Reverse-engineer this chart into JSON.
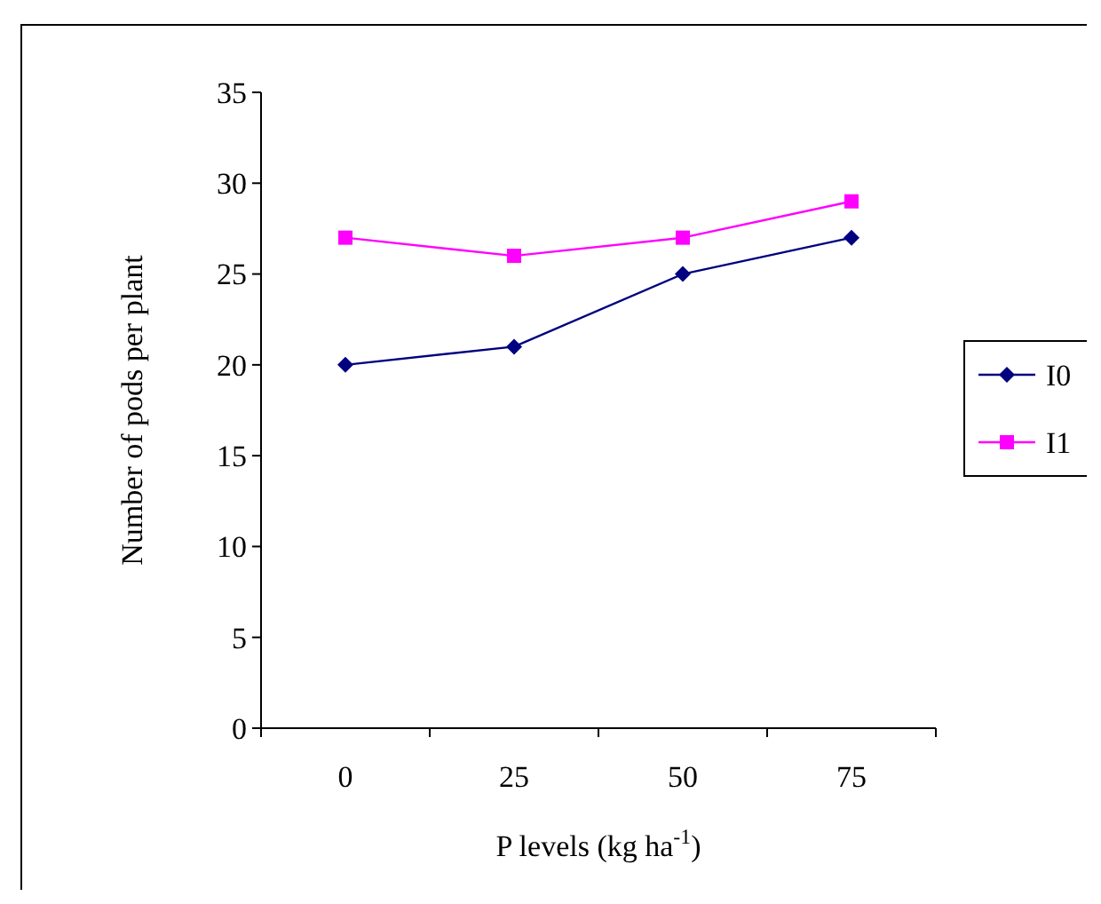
{
  "chart_data": {
    "type": "line",
    "xlabel": "P levels (kg ha$^{-1}$)",
    "ylabel": "Number of pods per plant",
    "categories": [
      "0",
      "25",
      "50",
      "75"
    ],
    "series": [
      {
        "name": "I0",
        "color": "#000080",
        "marker": "diamond",
        "values": [
          20,
          21,
          25,
          27
        ]
      },
      {
        "name": "I1",
        "color": "#ff00ff",
        "marker": "square",
        "values": [
          27,
          26,
          27,
          29
        ]
      }
    ],
    "ylim": [
      0,
      35
    ],
    "yticks": [
      0,
      5,
      10,
      15,
      20,
      25,
      30,
      35
    ],
    "grid": false,
    "legend": "right"
  }
}
